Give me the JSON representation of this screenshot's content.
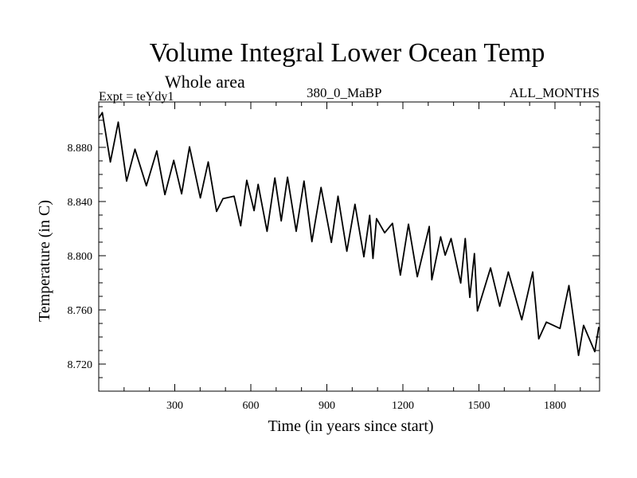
{
  "chart_data": {
    "type": "line",
    "title": "Volume Integral Lower Ocean Temp",
    "subtitle": "Whole area",
    "annotations": {
      "left": "Expt = teYdy1",
      "center": "380_0_MaBP",
      "right": "ALL_MONTHS"
    },
    "xlabel": "Time (in years since start)",
    "ylabel": "Temperature (in C)",
    "xlim": [
      0,
      1976
    ],
    "ylim": [
      8.7,
      8.9135
    ],
    "xticks": [
      300,
      600,
      900,
      1200,
      1500,
      1800
    ],
    "xtick_labels": [
      "300",
      "600",
      "900",
      "1200",
      "1500",
      "1800"
    ],
    "yticks": [
      8.72,
      8.76,
      8.8,
      8.84,
      8.88
    ],
    "ytick_labels": [
      "8.720",
      "8.760",
      "8.800",
      "8.840",
      "8.880"
    ],
    "x_minor_step": 100,
    "y_minor_step": 0.01,
    "grid": false,
    "legend": "none",
    "series": [
      {
        "name": "teYdy1",
        "color": "#000000",
        "x": [
          0,
          14,
          46,
          77,
          110,
          143,
          188,
          229,
          261,
          296,
          327,
          358,
          401,
          432,
          465,
          490,
          534,
          560,
          584,
          613,
          629,
          664,
          695,
          720,
          745,
          779,
          810,
          841,
          877,
          918,
          944,
          979,
          1011,
          1046,
          1069,
          1082,
          1096,
          1128,
          1159,
          1190,
          1222,
          1257,
          1304,
          1314,
          1349,
          1367,
          1390,
          1428,
          1446,
          1464,
          1482,
          1494,
          1546,
          1582,
          1616,
          1669,
          1712,
          1736,
          1766,
          1820,
          1855,
          1893,
          1913,
          1957,
          1973
        ],
        "y": [
          8.9015,
          8.9057,
          8.8692,
          8.8986,
          8.8551,
          8.8786,
          8.8516,
          8.8774,
          8.8451,
          8.8704,
          8.8457,
          8.8804,
          8.8427,
          8.8692,
          8.8327,
          8.8421,
          8.8439,
          8.8221,
          8.8557,
          8.8333,
          8.8527,
          8.818,
          8.8574,
          8.8257,
          8.858,
          8.818,
          8.8551,
          8.8104,
          8.8504,
          8.8098,
          8.8439,
          8.8033,
          8.838,
          8.7992,
          8.8298,
          8.798,
          8.8274,
          8.8169,
          8.8239,
          8.7857,
          8.8233,
          8.7845,
          8.8216,
          8.7822,
          8.8139,
          8.8004,
          8.8127,
          8.7798,
          8.8127,
          8.7692,
          8.8016,
          8.7592,
          8.791,
          8.7627,
          8.788,
          8.7527,
          8.788,
          8.7386,
          8.751,
          8.7463,
          8.778,
          8.7264,
          8.7486,
          8.7292,
          8.7474
        ]
      }
    ]
  }
}
